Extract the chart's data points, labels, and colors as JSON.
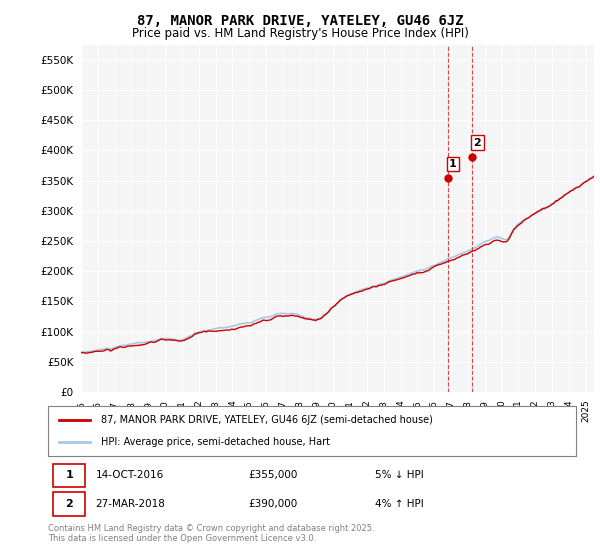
{
  "title": "87, MANOR PARK DRIVE, YATELEY, GU46 6JZ",
  "subtitle": "Price paid vs. HM Land Registry's House Price Index (HPI)",
  "ylabel_ticks": [
    "£0",
    "£50K",
    "£100K",
    "£150K",
    "£200K",
    "£250K",
    "£300K",
    "£350K",
    "£400K",
    "£450K",
    "£500K",
    "£550K"
  ],
  "ytick_values": [
    0,
    50000,
    100000,
    150000,
    200000,
    250000,
    300000,
    350000,
    400000,
    450000,
    500000,
    550000
  ],
  "ylim": [
    0,
    575000
  ],
  "xstart_year": 1995,
  "xend_year": 2025,
  "sale1_year": 2016.79,
  "sale1_price": 355000,
  "sale1_label": "1",
  "sale2_year": 2018.24,
  "sale2_price": 390000,
  "sale2_label": "2",
  "hpi_color": "#a8c8e8",
  "price_color": "#cc0000",
  "vline_color": "#cc0000",
  "legend_label_price": "87, MANOR PARK DRIVE, YATELEY, GU46 6JZ (semi-detached house)",
  "legend_label_hpi": "HPI: Average price, semi-detached house, Hart",
  "annotation1": "1    14-OCT-2016         £355,000         5% ↓ HPI",
  "annotation2": "2    27-MAR-2018         £390,000         4% ↑ HPI",
  "footnote": "Contains HM Land Registry data © Crown copyright and database right 2025.\nThis data is licensed under the Open Government Licence v3.0.",
  "bg_color": "#ffffff",
  "plot_bg_color": "#f5f5f5"
}
